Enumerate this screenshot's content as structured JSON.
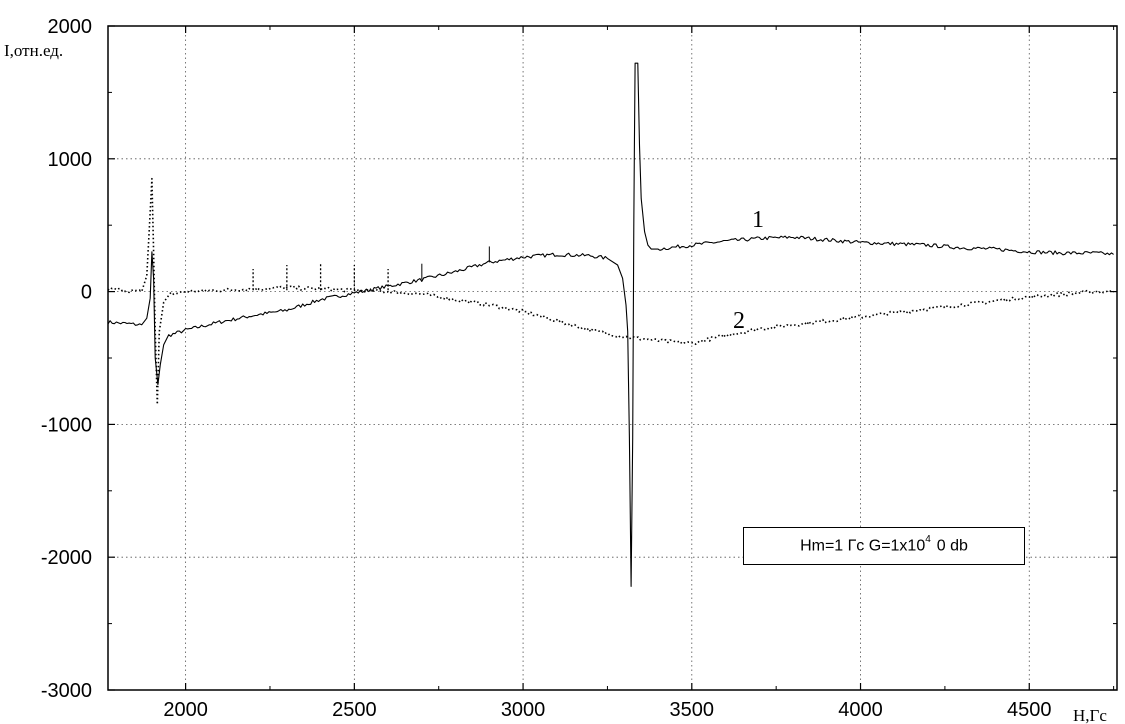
{
  "chart_data": {
    "type": "line",
    "xlabel": "H,Гс",
    "ylabel": "I,отн.ед.",
    "xlim": [
      1770,
      4760
    ],
    "ylim": [
      -3000,
      2000
    ],
    "x_ticks": [
      2000,
      2500,
      3000,
      3500,
      4000,
      4500
    ],
    "y_ticks": [
      2000,
      1000,
      0,
      -1000,
      -2000,
      -3000
    ],
    "x_tick_labels": [
      "2000",
      "2500",
      "3000",
      "3500",
      "4000",
      "4500"
    ],
    "y_tick_labels": [
      "2000",
      "1000",
      "0",
      "-1000",
      "-2000",
      "-3000"
    ],
    "grid": true,
    "annotation": {
      "prefix": "Hm=1 Гс G=1x10",
      "exponent": "4",
      "suffix": "0 db"
    },
    "series": [
      {
        "name": "1",
        "style": "solid",
        "color": "#000000",
        "x": [
          1770,
          1820,
          1870,
          1885,
          1895,
          1900,
          1905,
          1910,
          1918,
          1925,
          1935,
          1950,
          2000,
          2100,
          2200,
          2300,
          2400,
          2500,
          2600,
          2700,
          2800,
          2900,
          3000,
          3100,
          3200,
          3250,
          3280,
          3295,
          3305,
          3310,
          3315,
          3320,
          3325,
          3328,
          3330,
          3332,
          3335,
          3340,
          3345,
          3350,
          3360,
          3370,
          3380,
          3400,
          3500,
          3600,
          3700,
          3800,
          3900,
          4000,
          4100,
          4200,
          4300,
          4400,
          4500,
          4600,
          4700,
          4750
        ],
        "y": [
          -230,
          -240,
          -250,
          -200,
          -50,
          300,
          100,
          -500,
          -700,
          -550,
          -400,
          -330,
          -290,
          -230,
          -180,
          -140,
          -60,
          -10,
          40,
          90,
          150,
          220,
          260,
          280,
          270,
          250,
          200,
          100,
          -100,
          -300,
          -1100,
          -2220,
          -1100,
          500,
          1100,
          1720,
          1720,
          1720,
          1100,
          700,
          450,
          350,
          320,
          320,
          350,
          380,
          400,
          410,
          390,
          370,
          360,
          350,
          330,
          320,
          300,
          290,
          290,
          280
        ]
      },
      {
        "name": "2",
        "style": "dotted",
        "color": "#000000",
        "x": [
          1770,
          1820,
          1870,
          1885,
          1893,
          1900,
          1905,
          1910,
          1916,
          1922,
          1935,
          1955,
          2000,
          2100,
          2200,
          2300,
          2400,
          2500,
          2600,
          2700,
          2800,
          2900,
          3000,
          3100,
          3200,
          3300,
          3400,
          3500,
          3600,
          3700,
          3800,
          3900,
          4000,
          4100,
          4200,
          4300,
          4400,
          4500,
          4600,
          4700,
          4750
        ],
        "y": [
          20,
          10,
          0,
          120,
          500,
          850,
          300,
          -300,
          -850,
          -300,
          -80,
          -20,
          0,
          10,
          20,
          30,
          20,
          10,
          0,
          -20,
          -60,
          -100,
          -150,
          -220,
          -290,
          -340,
          -370,
          -390,
          -330,
          -280,
          -250,
          -220,
          -190,
          -160,
          -130,
          -100,
          -70,
          -40,
          -20,
          0,
          0
        ]
      }
    ],
    "spikes": {
      "note_series": "2",
      "x": [
        2200,
        2300,
        2400,
        2500,
        2600
      ],
      "y": [
        170,
        200,
        210,
        200,
        170
      ]
    },
    "spikes_solid": {
      "x": [
        2700,
        2900
      ],
      "y": [
        210,
        340
      ]
    }
  }
}
